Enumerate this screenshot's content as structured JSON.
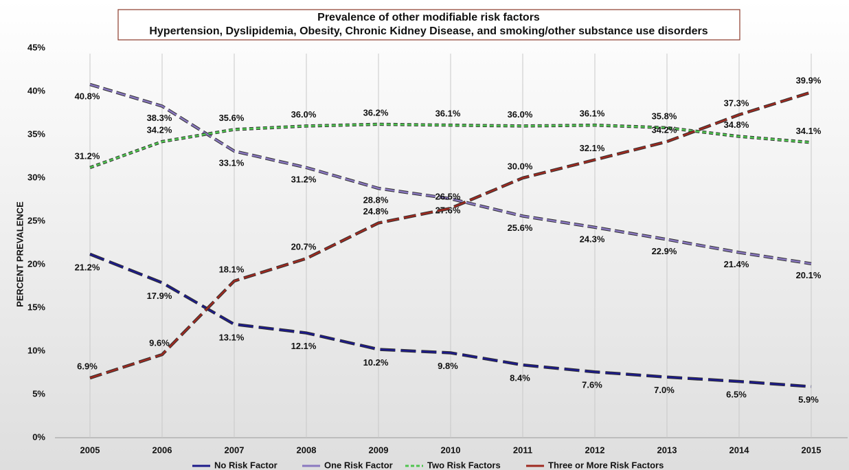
{
  "chart_data": {
    "type": "line",
    "title": "Prevalence of other modifiable risk factors",
    "subtitle": "Hypertension, Dyslipidemia, Obesity, Chronic Kidney Disease, and smoking/other substance use disorders",
    "y_label": "PERCENT PREVALENCE",
    "categories": [
      "2005",
      "2006",
      "2007",
      "2008",
      "2009",
      "2010",
      "2011",
      "2012",
      "2013",
      "2014",
      "2015"
    ],
    "series": [
      {
        "name": "No Risk Factor",
        "color": "#1c1a8a",
        "values": [
          21.2,
          17.9,
          13.1,
          12.1,
          10.2,
          9.8,
          8.4,
          7.6,
          7.0,
          6.5,
          5.9
        ],
        "value_labels": [
          "21.2%",
          "17.9%",
          "13.1%",
          "12.1%",
          "10.2%",
          "9.8%",
          "8.4%",
          "7.6%",
          "7.0%",
          "6.5%",
          "5.9%"
        ]
      },
      {
        "name": "One Risk Factor",
        "color": "#8a78c0",
        "values": [
          40.8,
          38.3,
          33.1,
          31.2,
          28.8,
          27.6,
          25.6,
          24.3,
          22.9,
          21.4,
          20.1
        ],
        "value_labels": [
          "40.8%",
          "38.3%",
          "33.1%",
          "31.2%",
          "28.8%",
          "27.6%",
          "25.6%",
          "24.3%",
          "22.9%",
          "21.4%",
          "20.1%"
        ]
      },
      {
        "name": "Two Risk Factors",
        "color": "#4fc44f",
        "values": [
          31.2,
          34.2,
          35.6,
          36.0,
          36.2,
          36.1,
          36.0,
          36.1,
          35.8,
          34.8,
          34.1
        ],
        "value_labels": [
          "31.2%",
          "34.2%",
          "35.6%",
          "36.0%",
          "36.2%",
          "36.1%",
          "36.0%",
          "36.1%",
          "35.8%",
          "34.8%",
          "34.1%"
        ]
      },
      {
        "name": "Three or More Risk Factors",
        "color": "#9e2a20",
        "values": [
          6.9,
          9.6,
          18.1,
          20.7,
          24.8,
          26.5,
          30.0,
          32.1,
          34.2,
          37.3,
          39.9
        ],
        "value_labels": [
          "6.9%",
          "9.6%",
          "18.1%",
          "20.7%",
          "24.8%",
          "26.5%",
          "30.0%",
          "32.1%",
          "34.2%",
          "37.3%",
          "39.9%"
        ]
      }
    ],
    "ylim": [
      0,
      45
    ],
    "yticks": [
      {
        "value": 0,
        "label": "0%"
      },
      {
        "value": 5,
        "label": "5%"
      },
      {
        "value": 10,
        "label": "10%"
      },
      {
        "value": 15,
        "label": "15%"
      },
      {
        "value": 20,
        "label": "20%"
      },
      {
        "value": 25,
        "label": "25%"
      },
      {
        "value": 30,
        "label": "30%"
      },
      {
        "value": 35,
        "label": "35%"
      },
      {
        "value": 40,
        "label": "40%"
      },
      {
        "value": 45,
        "label": "45%"
      }
    ],
    "grid": "x",
    "legend": "bottom"
  }
}
